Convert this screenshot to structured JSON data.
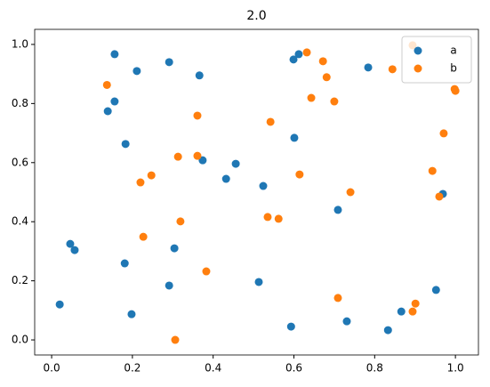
{
  "chart_data": {
    "type": "scatter",
    "title": "2.0",
    "series": [
      {
        "name": "a",
        "color": "#1f77b4",
        "x": [
          0.156,
          0.211,
          0.291,
          0.366,
          0.612,
          0.599,
          0.784,
          0.139,
          0.156,
          0.183,
          0.601,
          0.374,
          0.456,
          0.432,
          0.524,
          0.709,
          0.969,
          0.046,
          0.057,
          0.304,
          0.181,
          0.291,
          0.513,
          0.02,
          0.198,
          0.593,
          0.731,
          0.866,
          0.833,
          0.952
        ],
        "values": [
          0.967,
          0.91,
          0.94,
          0.895,
          0.967,
          0.949,
          0.922,
          0.774,
          0.807,
          0.663,
          0.684,
          0.608,
          0.596,
          0.545,
          0.521,
          0.44,
          0.494,
          0.325,
          0.304,
          0.31,
          0.259,
          0.184,
          0.196,
          0.12,
          0.087,
          0.045,
          0.063,
          0.096,
          0.033,
          0.169
        ]
      },
      {
        "name": "b",
        "color": "#ff7f0e",
        "x": [
          0.894,
          0.632,
          0.672,
          0.681,
          0.844,
          0.643,
          0.7,
          0.137,
          0.998,
          1.0,
          0.361,
          0.542,
          0.971,
          0.313,
          0.361,
          0.247,
          0.22,
          0.614,
          0.74,
          0.943,
          0.96,
          0.535,
          0.562,
          0.319,
          0.227,
          0.383,
          0.709,
          0.901,
          0.894,
          0.306
        ],
        "values": [
          0.997,
          0.973,
          0.943,
          0.889,
          0.916,
          0.819,
          0.807,
          0.863,
          0.849,
          0.843,
          0.759,
          0.738,
          0.699,
          0.62,
          0.623,
          0.557,
          0.533,
          0.56,
          0.5,
          0.572,
          0.485,
          0.416,
          0.41,
          0.401,
          0.349,
          0.232,
          0.142,
          0.123,
          0.096,
          0.0
        ]
      }
    ],
    "xlim": [
      -0.042,
      1.057
    ],
    "ylim": [
      -0.051,
      1.051
    ],
    "xticks": [
      {
        "value": 0,
        "label": "0.0"
      },
      {
        "value": 0.2,
        "label": "0.2"
      },
      {
        "value": 0.4,
        "label": "0.4"
      },
      {
        "value": 0.6,
        "label": "0.6"
      },
      {
        "value": 0.8,
        "label": "0.8"
      },
      {
        "value": 1,
        "label": "1.0"
      }
    ],
    "yticks": [
      {
        "value": 0,
        "label": "0.0"
      },
      {
        "value": 0.2,
        "label": "0.2"
      },
      {
        "value": 0.4,
        "label": "0.4"
      },
      {
        "value": 0.6,
        "label": "0.6"
      },
      {
        "value": 0.8,
        "label": "0.8"
      },
      {
        "value": 1,
        "label": "1.0"
      }
    ],
    "legend": "upper right",
    "grid": false
  }
}
